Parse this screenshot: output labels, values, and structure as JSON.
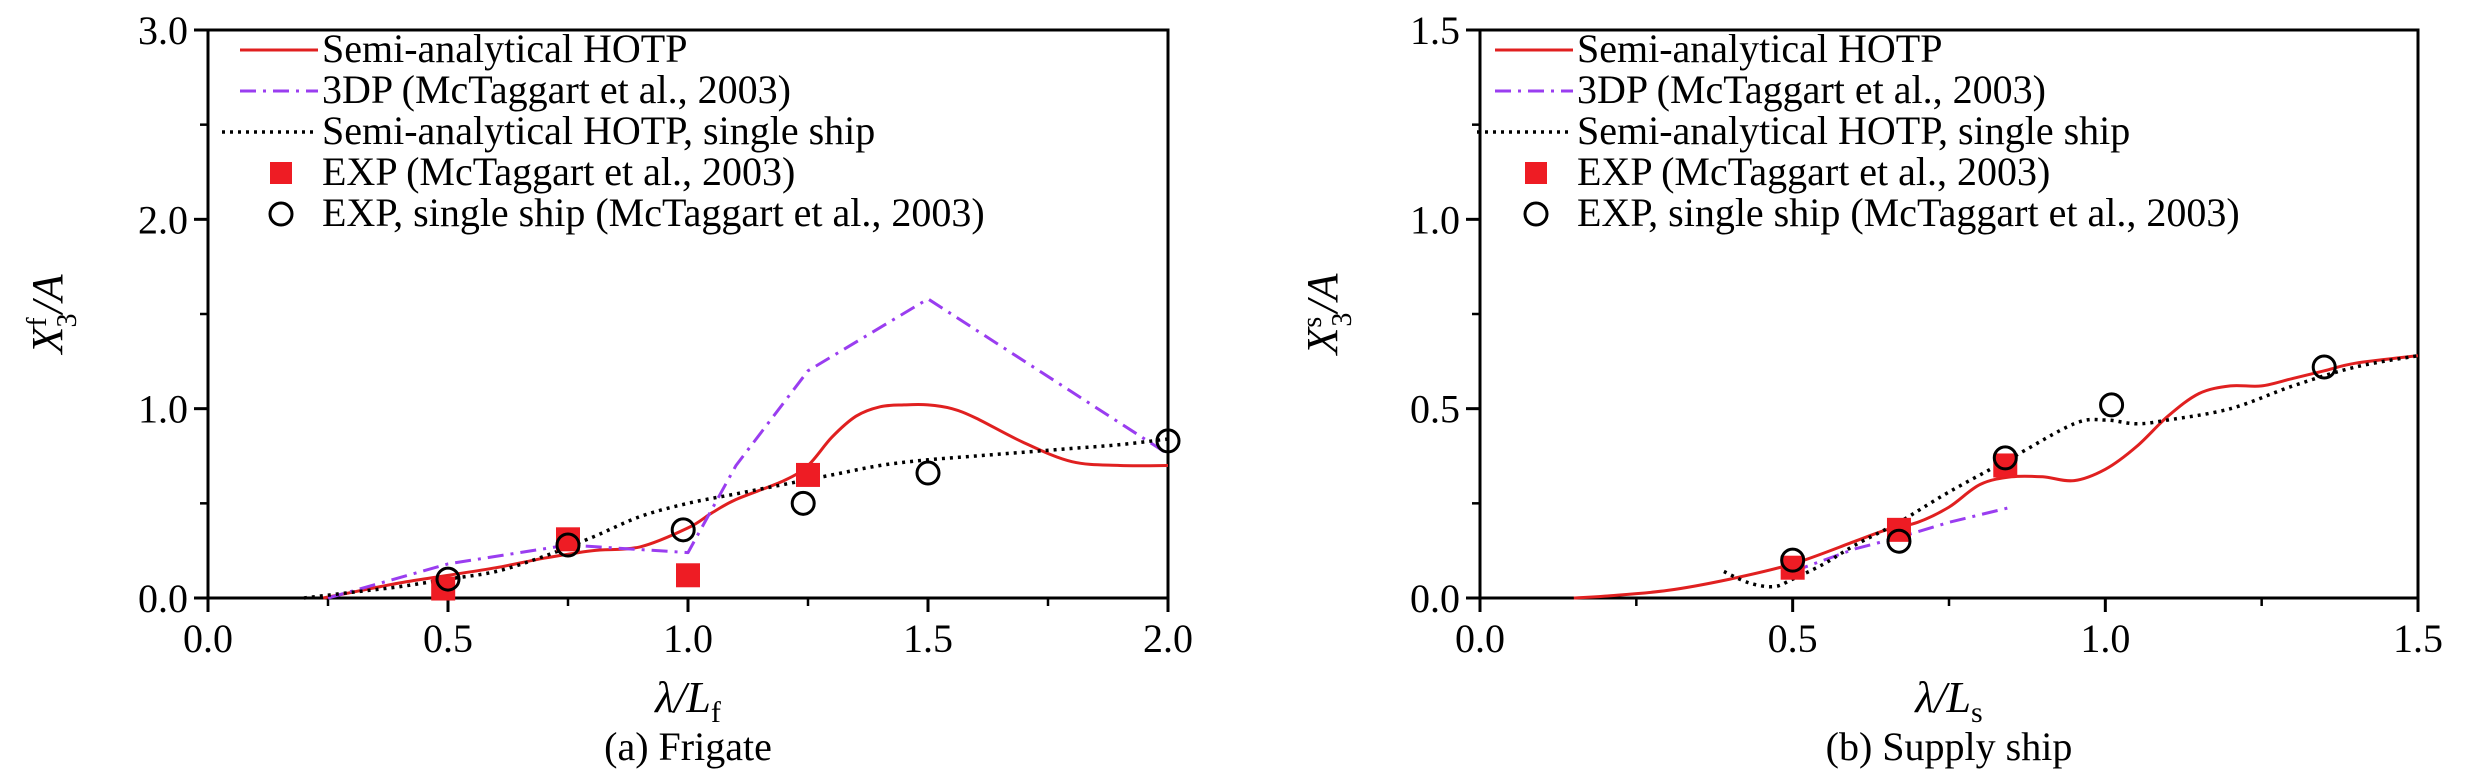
{
  "colors": {
    "hotp": "#e02020",
    "dp3": "#9a3df0",
    "single": "#000000",
    "exp": "#ee1c24",
    "exp_single": "#000000"
  },
  "chart_data": [
    {
      "type": "line",
      "caption": "(a) Frigate",
      "xlabel": "λ/L",
      "xlabel_sub": "f",
      "ylabel": "X",
      "ylabel_sub": "3",
      "ylabel_sup": "f",
      "ylabel_tail": "/A",
      "xlim": [
        0.0,
        2.0
      ],
      "ylim": [
        0.0,
        3.0
      ],
      "xticks": [
        "0.0",
        "0.5",
        "1.0",
        "1.5",
        "2.0"
      ],
      "yticks": [
        "0.0",
        "1.0",
        "2.0",
        "3.0"
      ],
      "xtick_values": [
        0.0,
        0.5,
        1.0,
        1.5,
        2.0
      ],
      "ytick_values": [
        0.0,
        1.0,
        2.0,
        3.0
      ],
      "legend_position": "top-left",
      "series": [
        {
          "name": "Semi-analytical HOTP",
          "style": "solid",
          "x": [
            0.24,
            0.3,
            0.4,
            0.5,
            0.6,
            0.7,
            0.8,
            0.9,
            1.0,
            1.05,
            1.1,
            1.2,
            1.25,
            1.3,
            1.35,
            1.4,
            1.45,
            1.5,
            1.55,
            1.6,
            1.7,
            1.8,
            1.9,
            2.0
          ],
          "y": [
            0.0,
            0.03,
            0.08,
            0.12,
            0.16,
            0.21,
            0.25,
            0.27,
            0.37,
            0.45,
            0.52,
            0.62,
            0.7,
            0.85,
            0.96,
            1.01,
            1.02,
            1.02,
            1.0,
            0.95,
            0.82,
            0.72,
            0.7,
            0.7
          ]
        },
        {
          "name": "3DP (McTaggart et al., 2003)",
          "style": "dashdot",
          "x": [
            0.25,
            0.5,
            0.75,
            1.0,
            1.1,
            1.25,
            1.5,
            2.0
          ],
          "y": [
            0.0,
            0.18,
            0.28,
            0.24,
            0.7,
            1.2,
            1.58,
            0.76
          ]
        },
        {
          "name": "Semi-analytical HOTP, single ship",
          "style": "dotted",
          "x": [
            0.2,
            0.3,
            0.4,
            0.5,
            0.6,
            0.7,
            0.8,
            0.9,
            1.0,
            1.1,
            1.2,
            1.3,
            1.4,
            1.5,
            1.6,
            1.7,
            1.8,
            1.9,
            2.0
          ],
          "y": [
            0.0,
            0.03,
            0.06,
            0.1,
            0.14,
            0.22,
            0.32,
            0.43,
            0.5,
            0.55,
            0.6,
            0.65,
            0.7,
            0.73,
            0.75,
            0.77,
            0.79,
            0.81,
            0.84
          ]
        },
        {
          "name": "EXP (McTaggart et al., 2003)",
          "style": "square",
          "x": [
            0.49,
            0.75,
            1.0,
            1.25
          ],
          "y": [
            0.05,
            0.31,
            0.12,
            0.65
          ]
        },
        {
          "name": "EXP, single ship (McTaggart et al., 2003)",
          "style": "circle",
          "x": [
            0.5,
            0.75,
            0.99,
            1.24,
            1.5,
            2.0
          ],
          "y": [
            0.1,
            0.28,
            0.36,
            0.5,
            0.66,
            0.83
          ]
        }
      ]
    },
    {
      "type": "line",
      "caption": "(b) Supply ship",
      "xlabel": "λ/L",
      "xlabel_sub": "s",
      "ylabel": "X",
      "ylabel_sub": "3",
      "ylabel_sup": "s",
      "ylabel_tail": "/A",
      "xlim": [
        0.0,
        1.5
      ],
      "ylim": [
        0.0,
        1.5
      ],
      "xticks": [
        "0.0",
        "0.5",
        "1.0",
        "1.5"
      ],
      "yticks": [
        "0.0",
        "0.5",
        "1.0",
        "1.5"
      ],
      "xtick_values": [
        0.0,
        0.5,
        1.0,
        1.5
      ],
      "ytick_values": [
        0.0,
        0.5,
        1.0,
        1.5
      ],
      "legend_position": "top-left",
      "series": [
        {
          "name": "Semi-analytical HOTP",
          "style": "solid",
          "x": [
            0.15,
            0.2,
            0.3,
            0.4,
            0.5,
            0.6,
            0.65,
            0.7,
            0.75,
            0.8,
            0.85,
            0.9,
            0.95,
            1.0,
            1.05,
            1.1,
            1.15,
            1.2,
            1.25,
            1.3,
            1.35,
            1.4,
            1.5
          ],
          "y": [
            0.0,
            0.005,
            0.02,
            0.05,
            0.09,
            0.15,
            0.18,
            0.2,
            0.24,
            0.3,
            0.32,
            0.32,
            0.31,
            0.34,
            0.4,
            0.48,
            0.54,
            0.56,
            0.56,
            0.58,
            0.6,
            0.62,
            0.64
          ]
        },
        {
          "name": "3DP (McTaggart et al., 2003)",
          "style": "dashdot",
          "x": [
            0.5,
            0.6,
            0.67,
            0.75,
            0.85
          ],
          "y": [
            0.07,
            0.13,
            0.16,
            0.2,
            0.24
          ]
        },
        {
          "name": "Semi-analytical HOTP, single ship",
          "style": "dotted",
          "x": [
            0.39,
            0.43,
            0.47,
            0.5,
            0.55,
            0.6,
            0.67,
            0.75,
            0.85,
            0.95,
            1.0,
            1.05,
            1.1,
            1.2,
            1.3,
            1.4,
            1.5
          ],
          "y": [
            0.07,
            0.04,
            0.03,
            0.05,
            0.09,
            0.14,
            0.2,
            0.28,
            0.37,
            0.46,
            0.47,
            0.46,
            0.47,
            0.5,
            0.56,
            0.61,
            0.64
          ]
        },
        {
          "name": "EXP (McTaggart et al., 2003)",
          "style": "square",
          "x": [
            0.5,
            0.67,
            0.84
          ],
          "y": [
            0.08,
            0.18,
            0.35
          ]
        },
        {
          "name": "EXP, single ship (McTaggart et al., 2003)",
          "style": "circle",
          "x": [
            0.5,
            0.67,
            0.84,
            1.01,
            1.35
          ],
          "y": [
            0.1,
            0.15,
            0.37,
            0.51,
            0.61
          ]
        }
      ]
    }
  ]
}
